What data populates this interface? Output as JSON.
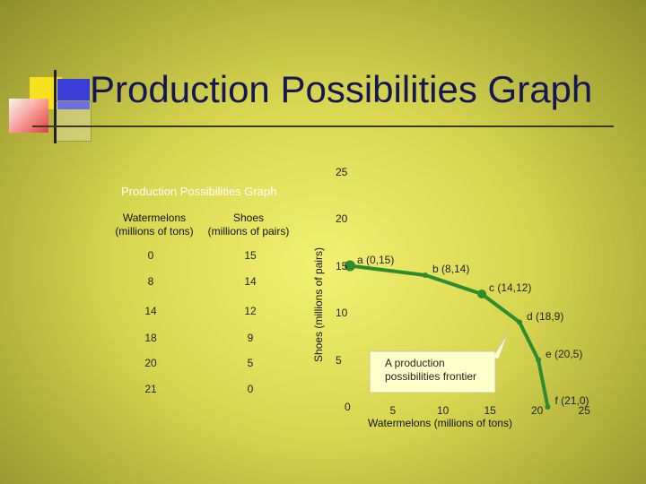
{
  "slide": {
    "title": "Production Possibilities Graph"
  },
  "table": {
    "header_watermelons": "Watermelons\n(millions of tons)",
    "header_shoes": "Shoes\n(millions of pairs)",
    "rows": [
      {
        "watermelons": "0",
        "shoes": "15"
      },
      {
        "watermelons": "8",
        "shoes": "14"
      },
      {
        "watermelons": "14",
        "shoes": "12"
      },
      {
        "watermelons": "18",
        "shoes": "9"
      },
      {
        "watermelons": "20",
        "shoes": "5"
      },
      {
        "watermelons": "21",
        "shoes": "0"
      }
    ]
  },
  "callout": "A production possibilities frontier",
  "colors": {
    "curve": "#2e8b2e",
    "title": "#161654",
    "callout_fill": "#ffffcc"
  },
  "chart_data": {
    "type": "line",
    "title": "Production Possibilities Graph",
    "xlabel": "Watermelons (millions of tons)",
    "ylabel": "Shoes (millions of pairs)",
    "xlim": [
      0,
      25
    ],
    "ylim": [
      0,
      25
    ],
    "x_ticks": [
      "5",
      "10",
      "15",
      "20",
      "25"
    ],
    "y_ticks": [
      "0",
      "5",
      "10",
      "15",
      "20",
      "25"
    ],
    "points": [
      {
        "x": 0,
        "y": 15,
        "label": "a (0,15)"
      },
      {
        "x": 8,
        "y": 14,
        "label": "b (8,14)"
      },
      {
        "x": 14,
        "y": 12,
        "label": "c (14,12)"
      },
      {
        "x": 18,
        "y": 9,
        "label": "d (18,9)"
      },
      {
        "x": 20,
        "y": 5,
        "label": "e (20,5)"
      },
      {
        "x": 21,
        "y": 0,
        "label": "f (21,0)"
      }
    ]
  }
}
